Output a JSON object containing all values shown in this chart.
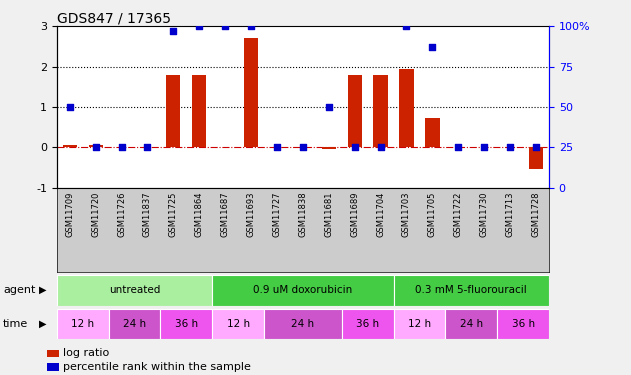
{
  "title": "GDS847 / 17365",
  "samples": [
    "GSM11709",
    "GSM11720",
    "GSM11726",
    "GSM11837",
    "GSM11725",
    "GSM11864",
    "GSM11687",
    "GSM11693",
    "GSM11727",
    "GSM11838",
    "GSM11681",
    "GSM11689",
    "GSM11704",
    "GSM11703",
    "GSM11705",
    "GSM11722",
    "GSM11730",
    "GSM11713",
    "GSM11728"
  ],
  "log_ratio": [
    0.05,
    0.05,
    0.0,
    0.0,
    1.78,
    1.78,
    0.0,
    2.72,
    0.0,
    0.0,
    -0.05,
    1.78,
    1.78,
    1.95,
    0.72,
    0.0,
    0.0,
    0.0,
    -0.55
  ],
  "percentile_rank": [
    50,
    25,
    25,
    25,
    97,
    100,
    100,
    100,
    25,
    25,
    50,
    25,
    25,
    100,
    87,
    25,
    25,
    25,
    25
  ],
  "agent_groups": [
    {
      "label": "untreated",
      "start": 0,
      "end": 6,
      "color": "#aaeea0"
    },
    {
      "label": "0.9 uM doxorubicin",
      "start": 6,
      "end": 13,
      "color": "#44cc44"
    },
    {
      "label": "0.3 mM 5-fluorouracil",
      "start": 13,
      "end": 19,
      "color": "#44cc44"
    }
  ],
  "time_groups": [
    {
      "label": "12 h",
      "start": 0,
      "end": 2,
      "color": "#ffaaff"
    },
    {
      "label": "24 h",
      "start": 2,
      "end": 4,
      "color": "#cc55cc"
    },
    {
      "label": "36 h",
      "start": 4,
      "end": 6,
      "color": "#ee55ee"
    },
    {
      "label": "12 h",
      "start": 6,
      "end": 8,
      "color": "#ffaaff"
    },
    {
      "label": "24 h",
      "start": 8,
      "end": 11,
      "color": "#cc55cc"
    },
    {
      "label": "36 h",
      "start": 11,
      "end": 13,
      "color": "#ee55ee"
    },
    {
      "label": "12 h",
      "start": 13,
      "end": 15,
      "color": "#ffaaff"
    },
    {
      "label": "24 h",
      "start": 15,
      "end": 17,
      "color": "#cc55cc"
    },
    {
      "label": "36 h",
      "start": 17,
      "end": 19,
      "color": "#ee55ee"
    }
  ],
  "bar_color": "#CC2200",
  "dot_color": "#0000CC",
  "ylim_left": [
    -1,
    3
  ],
  "ylim_right": [
    0,
    100
  ],
  "yticks_left": [
    -1,
    0,
    1,
    2,
    3
  ],
  "yticks_right": [
    0,
    25,
    50,
    75,
    100
  ],
  "ytick_labels_right": [
    "0",
    "25",
    "50",
    "75",
    "100%"
  ],
  "hlines": [
    0,
    1,
    2
  ],
  "hline_styles": [
    "dashdot",
    "dotted",
    "dotted"
  ],
  "hline_colors": [
    "#CC0000",
    "#000000",
    "#000000"
  ],
  "agent_label": "agent",
  "time_label": "time",
  "legend_bar_label": "log ratio",
  "legend_dot_label": "percentile rank within the sample",
  "plot_bg_color": "#ffffff",
  "fig_bg_color": "#f0f0f0",
  "tick_label_bg": "#cccccc"
}
